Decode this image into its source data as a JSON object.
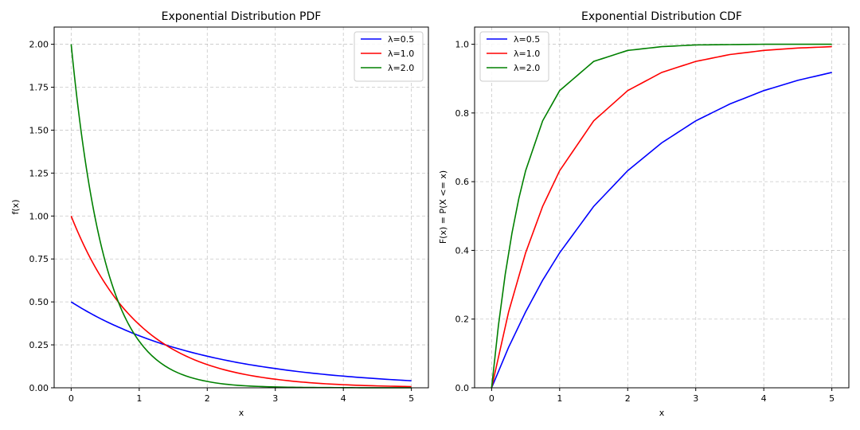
{
  "chart_data": [
    {
      "type": "line",
      "title": "Exponential Distribution PDF",
      "xlabel": "x",
      "ylabel": "f(x)",
      "xlim": [
        -0.25,
        5.25
      ],
      "ylim": [
        0,
        2.1
      ],
      "xticks": [
        0,
        1,
        2,
        3,
        4,
        5
      ],
      "xtick_labels": [
        "0",
        "1",
        "2",
        "3",
        "4",
        "5"
      ],
      "yticks": [
        0,
        0.25,
        0.5,
        0.75,
        1.0,
        1.25,
        1.5,
        1.75,
        2.0
      ],
      "ytick_labels": [
        "0.00",
        "0.25",
        "0.50",
        "0.75",
        "1.00",
        "1.25",
        "1.50",
        "1.75",
        "2.00"
      ],
      "grid": true,
      "legend": "top-right",
      "series": [
        {
          "name": "λ=0.5",
          "color": "#0000ff",
          "x": [
            0,
            0.25,
            0.5,
            0.75,
            1,
            1.5,
            2,
            2.5,
            3,
            3.5,
            4,
            4.5,
            5
          ],
          "values": [
            0.5,
            0.441,
            0.389,
            0.344,
            0.303,
            0.236,
            0.184,
            0.143,
            0.112,
            0.087,
            0.068,
            0.053,
            0.041
          ]
        },
        {
          "name": "λ=1.0",
          "color": "#ff0000",
          "x": [
            0,
            0.25,
            0.5,
            0.75,
            1,
            1.5,
            2,
            2.5,
            3,
            3.5,
            4,
            4.5,
            5
          ],
          "values": [
            1.0,
            0.779,
            0.607,
            0.472,
            0.368,
            0.223,
            0.135,
            0.082,
            0.05,
            0.03,
            0.018,
            0.011,
            0.007
          ]
        },
        {
          "name": "λ=2.0",
          "color": "#008000",
          "x": [
            0,
            0.1,
            0.2,
            0.3,
            0.4,
            0.5,
            0.75,
            1,
            1.5,
            2,
            2.5,
            3,
            3.5,
            4,
            4.5,
            5
          ],
          "values": [
            2.0,
            1.637,
            1.341,
            1.098,
            0.899,
            0.736,
            0.446,
            0.271,
            0.1,
            0.037,
            0.013,
            0.005,
            0.002,
            0.001,
            0.0002,
            0.0001
          ]
        }
      ]
    },
    {
      "type": "line",
      "title": "Exponential Distribution CDF",
      "xlabel": "x",
      "ylabel": "F(x) = P(X <= x)",
      "xlim": [
        -0.25,
        5.25
      ],
      "ylim": [
        0,
        1.05
      ],
      "xticks": [
        0,
        1,
        2,
        3,
        4,
        5
      ],
      "xtick_labels": [
        "0",
        "1",
        "2",
        "3",
        "4",
        "5"
      ],
      "yticks": [
        0,
        0.2,
        0.4,
        0.6,
        0.8,
        1.0
      ],
      "ytick_labels": [
        "0.0",
        "0.2",
        "0.4",
        "0.6",
        "0.8",
        "1.0"
      ],
      "grid": true,
      "legend": "top-left",
      "series": [
        {
          "name": "λ=0.5",
          "color": "#0000ff",
          "x": [
            0,
            0.25,
            0.5,
            0.75,
            1,
            1.5,
            2,
            2.5,
            3,
            3.5,
            4,
            4.5,
            5
          ],
          "values": [
            0,
            0.118,
            0.221,
            0.313,
            0.393,
            0.528,
            0.632,
            0.713,
            0.777,
            0.826,
            0.865,
            0.895,
            0.918
          ]
        },
        {
          "name": "λ=1.0",
          "color": "#ff0000",
          "x": [
            0,
            0.25,
            0.5,
            0.75,
            1,
            1.5,
            2,
            2.5,
            3,
            3.5,
            4,
            4.5,
            5
          ],
          "values": [
            0,
            0.221,
            0.393,
            0.528,
            0.632,
            0.777,
            0.865,
            0.918,
            0.95,
            0.97,
            0.982,
            0.989,
            0.993
          ]
        },
        {
          "name": "λ=2.0",
          "color": "#008000",
          "x": [
            0,
            0.1,
            0.2,
            0.3,
            0.4,
            0.5,
            0.75,
            1,
            1.5,
            2,
            2.5,
            3,
            3.5,
            4,
            4.5,
            5
          ],
          "values": [
            0,
            0.181,
            0.33,
            0.451,
            0.551,
            0.632,
            0.777,
            0.865,
            0.95,
            0.982,
            0.993,
            0.998,
            0.999,
            1.0,
            1.0,
            1.0
          ]
        }
      ]
    }
  ]
}
